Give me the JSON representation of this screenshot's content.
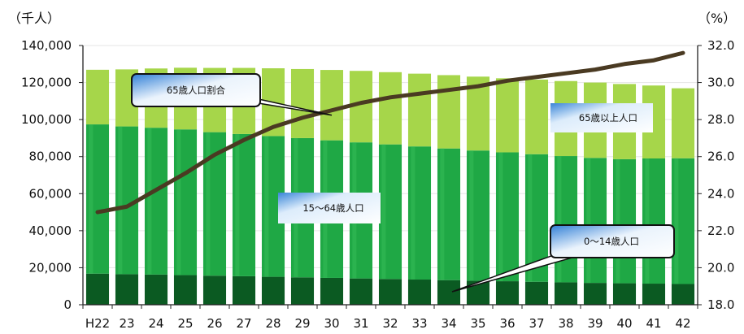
{
  "chart_data": {
    "type": "bar",
    "stacked": true,
    "categories": [
      "H22",
      "23",
      "24",
      "25",
      "26",
      "27",
      "28",
      "29",
      "30",
      "31",
      "32",
      "33",
      "34",
      "35",
      "36",
      "37",
      "38",
      "39",
      "40",
      "41",
      "42"
    ],
    "series": [
      {
        "name": "0〜14歳人口",
        "values": [
          16800,
          16500,
          16300,
          16000,
          15700,
          15400,
          15100,
          14800,
          14500,
          14200,
          13900,
          13600,
          13300,
          13000,
          12700,
          12400,
          12100,
          11800,
          11600,
          11400,
          11200
        ]
      },
      {
        "name": "15〜64歳人口",
        "values": [
          80600,
          79800,
          79300,
          78700,
          77500,
          76800,
          76000,
          75200,
          74300,
          73500,
          72700,
          71900,
          71100,
          70300,
          69600,
          68900,
          68200,
          67500,
          67000,
          67600,
          67900
        ]
      },
      {
        "name": "65歳以上人口",
        "values": [
          29500,
          30800,
          32000,
          33300,
          34700,
          35700,
          36600,
          37300,
          38000,
          38600,
          39000,
          39300,
          39600,
          39900,
          40000,
          40300,
          40500,
          40700,
          40600,
          39400,
          37800
        ]
      }
    ],
    "line_series": {
      "name": "65歳人口割合",
      "axis": "right",
      "values": [
        23.0,
        23.3,
        24.2,
        25.1,
        26.1,
        26.9,
        27.6,
        28.1,
        28.5,
        28.9,
        29.2,
        29.4,
        29.6,
        29.8,
        30.1,
        30.3,
        30.5,
        30.7,
        31.0,
        31.2,
        31.6
      ]
    },
    "y_left": {
      "unit": "（千人）",
      "ylim": [
        0,
        140000
      ],
      "ticks": [
        "0",
        "20,000",
        "40,000",
        "60,000",
        "80,000",
        "100,000",
        "120,000",
        "140,000"
      ]
    },
    "y_right": {
      "unit": "（%）",
      "ylim": [
        18.0,
        32.0
      ],
      "ticks": [
        "18.0",
        "20.0",
        "22.0",
        "24.0",
        "26.0",
        "28.0",
        "30.0",
        "32.0"
      ]
    },
    "annotations": {
      "ratio": "65歳人口割合",
      "elderly": "65歳以上人口",
      "working": "15〜64歳人口",
      "youth": "0〜14歳人口"
    },
    "colors": {
      "youth": "#0b5a22",
      "working": "#1fa845",
      "elderly": "#a6d64a",
      "line": "#4a3a22",
      "axis": "#222222",
      "label_fill": "#5aa0e0"
    }
  }
}
